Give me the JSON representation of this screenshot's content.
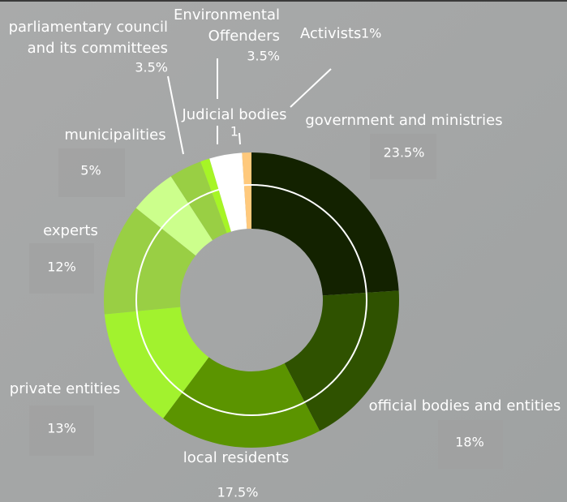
{
  "chart_data": {
    "type": "donut",
    "categories": [
      "government and ministries",
      "official bodies and entities",
      "local residents",
      "private entities",
      "experts",
      "municipalities",
      "parliamentary council and its committees",
      "Judicial bodies",
      "Environmental Offenders",
      "Activists"
    ],
    "values": [
      23.5,
      18,
      17.5,
      13,
      12,
      5,
      3.5,
      1,
      3.5,
      1
    ],
    "value_labels": [
      "23.5%",
      "18%",
      "17.5%",
      "13%",
      "12%",
      "5%",
      "3.5%",
      "1",
      "3.5%",
      "1%"
    ],
    "colors": [
      "#132200",
      "#2f5200",
      "#5b9400",
      "#a2f22e",
      "#99cf44",
      "#ccff8c",
      "#99cf44",
      "#a6f526",
      "#ffffff",
      "#ffc97c"
    ]
  }
}
